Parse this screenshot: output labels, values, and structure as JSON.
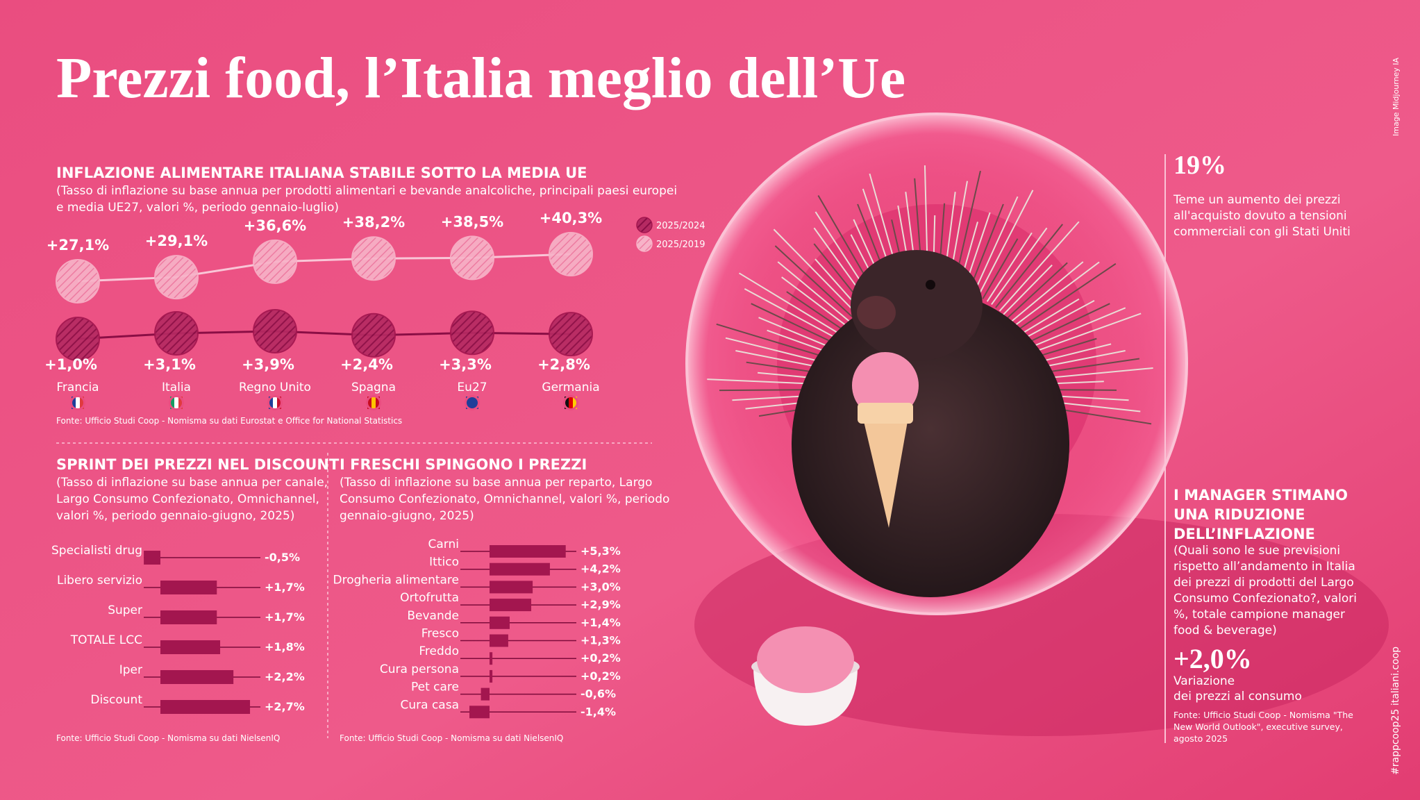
{
  "title": "Prezzi food, l’Italia meglio dell’Ue",
  "credit": "Image Midjourney IA",
  "footer_tag": "#rappcoop25 italiani.coop",
  "chart_data": [
    {
      "type": "line",
      "title": "INFLAZIONE ALIMENTARE ITALIANA STABILE SOTTO LA MEDIA UE",
      "subtitle": [
        "(Tasso di inflazione su base annua per prodotti alimentari e bevande analcoliche, principali paesi europei",
        "e media UE27, valori %, periodo gennaio-luglio)"
      ],
      "categories": [
        "Francia",
        "Italia",
        "Regno Unito",
        "Spagna",
        "Eu27",
        "Germania"
      ],
      "series": [
        {
          "name": "2025/2024",
          "color": "#a3164f",
          "values": [
            1.0,
            3.1,
            3.9,
            2.4,
            3.3,
            2.8
          ],
          "value_labels": [
            "+1,0%",
            "+3,1%",
            "+3,9%",
            "+2,4%",
            "+3,3%",
            "+2,8%"
          ]
        },
        {
          "name": "2025/2019",
          "color": "#f7b3c8",
          "values": [
            27.1,
            29.1,
            36.6,
            38.2,
            38.5,
            40.3
          ],
          "value_labels": [
            "+27,1%",
            "+29,1%",
            "+36,6%",
            "+38,2%",
            "+38,5%",
            "+40,3%"
          ]
        }
      ],
      "source": "Fonte: Ufficio Studi Coop - Nomisma su dati Eurostat e Office for National Statistics"
    },
    {
      "type": "bar",
      "orientation": "horizontal",
      "title": "SPRINT DEI PREZZI NEL DISCOUNT",
      "subtitle": [
        "(Tasso di inflazione su base annua per canale,",
        " Largo Consumo Confezionato, Omnichannel,",
        "valori %, periodo gennaio-giugno, 2025)"
      ],
      "categories": [
        "Specialisti drug",
        "Libero servizio",
        "Super",
        "TOTALE LCC",
        "Iper",
        "Discount"
      ],
      "values": [
        -0.5,
        1.7,
        1.7,
        1.8,
        2.2,
        2.7
      ],
      "value_labels": [
        "-0,5%",
        "+1,7%",
        "+1,7%",
        "+1,8%",
        "+2,2%",
        "+2,7%"
      ],
      "color": "#a3164f",
      "source": "Fonte: Ufficio Studi Coop - Nomisma su dati NielsenIQ"
    },
    {
      "type": "bar",
      "orientation": "horizontal",
      "title": "I FRESCHI SPINGONO I PREZZI",
      "subtitle": [
        "(Tasso di inflazione su base annua per reparto, Largo",
        "Consumo Confezionato, Omnichannel, valori %, periodo",
        "gennaio-giugno, 2025)"
      ],
      "categories": [
        "Carni",
        "Ittico",
        "Drogheria alimentare",
        "Ortofrutta",
        "Bevande",
        "Fresco",
        "Freddo",
        "Cura persona",
        "Pet care",
        "Cura casa"
      ],
      "values": [
        5.3,
        4.2,
        3.0,
        2.9,
        1.4,
        1.3,
        0.2,
        0.2,
        -0.6,
        -1.4
      ],
      "value_labels": [
        "+5,3%",
        "+4,2%",
        "+3,0%",
        "+2,9%",
        "+1,4%",
        "+1,3%",
        "+0,2%",
        "+0,2%",
        "-0,6%",
        "-1,4%"
      ],
      "color": "#a3164f",
      "source": "Fonte: Ufficio Studi Coop - Nomisma su dati NielsenIQ"
    }
  ],
  "side": {
    "stat": {
      "value": "19%",
      "text": [
        "Teme un aumento dei prezzi",
        "all'acquisto dovuto a tensioni",
        "commerciali con gli Stati Uniti"
      ]
    },
    "manager": {
      "heading": [
        "I MANAGER STIMANO",
        "UNA RIDUZIONE",
        "DELL’INFLAZIONE"
      ],
      "subtitle": [
        "(Quali sono le sue previsioni",
        "rispetto all’andamento in Italia",
        "dei prezzi di prodotti del Largo",
        "Consumo Confezionato?, valori",
        "%, totale campione manager",
        "food & beverage)"
      ],
      "value": "+2,0%",
      "caption": [
        "Variazione",
        "dei prezzi al consumo"
      ],
      "source": [
        "Fonte: Ufficio Studi Coop - Nomisma \"The",
        "New World Outlook\", executive survey,",
        "agosto 2025"
      ]
    }
  }
}
